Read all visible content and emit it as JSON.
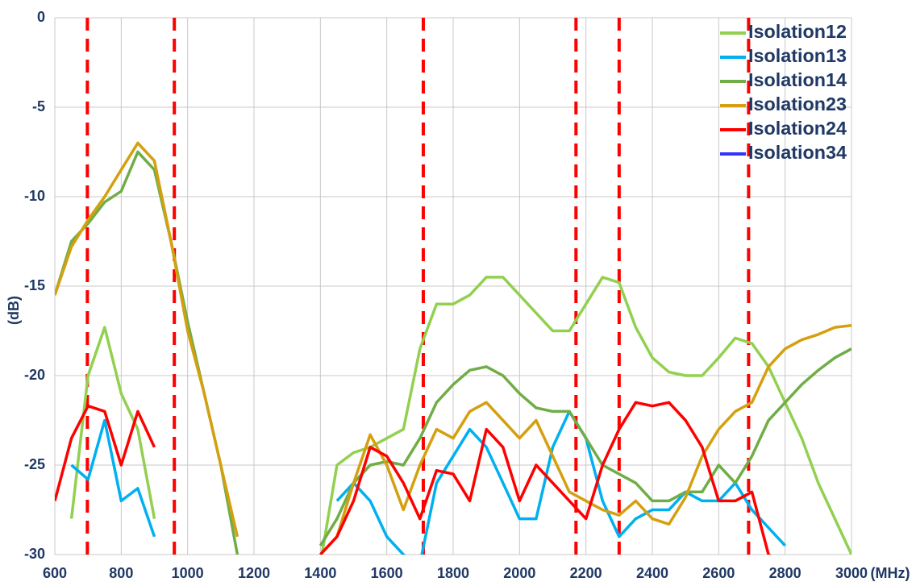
{
  "chart_data": {
    "type": "line",
    "xlabel": "(MHz)",
    "ylabel": "(dB)",
    "xlim": [
      600,
      3000
    ],
    "ylim": [
      -30,
      0
    ],
    "xticks": [
      600,
      800,
      1000,
      1200,
      1400,
      1600,
      1800,
      2000,
      2200,
      2400,
      2600,
      2800,
      3000
    ],
    "yticks": [
      0,
      -5,
      -10,
      -15,
      -20,
      -25,
      -30
    ],
    "grid": true,
    "legend": "upper right",
    "reference_lines": {
      "color": "#ff0000",
      "x": [
        698,
        960,
        1710,
        2170,
        2300,
        2690
      ]
    },
    "x": [
      600,
      650,
      700,
      750,
      800,
      850,
      900,
      950,
      1000,
      1050,
      1100,
      1150,
      1200,
      1250,
      1300,
      1350,
      1400,
      1450,
      1500,
      1550,
      1600,
      1650,
      1700,
      1750,
      1800,
      1850,
      1900,
      1950,
      2000,
      2050,
      2100,
      2150,
      2200,
      2250,
      2300,
      2350,
      2400,
      2450,
      2500,
      2550,
      2600,
      2650,
      2700,
      2750,
      2800,
      2850,
      2900,
      2950,
      3000
    ],
    "series": [
      {
        "name": "Isolation12",
        "color": "#92d050",
        "values": [
          null,
          -28,
          -20,
          -17.3,
          -21,
          -23,
          -28,
          null,
          null,
          null,
          null,
          null,
          null,
          null,
          null,
          null,
          -30.5,
          -25,
          -24.3,
          -24,
          -23.5,
          -23,
          -18.5,
          -16,
          -16,
          -15.5,
          -14.5,
          -14.5,
          -15.5,
          -16.5,
          -17.5,
          -17.5,
          -16,
          -14.5,
          -14.8,
          -17.3,
          -19,
          -19.8,
          -20,
          -20,
          -19,
          -17.9,
          -18.2,
          -19.5,
          -21.5,
          -23.5,
          -26,
          -28,
          -30
        ]
      },
      {
        "name": "Isolation13",
        "color": "#00b0f0",
        "values": [
          null,
          -25,
          -25.8,
          -22.5,
          -27,
          -26.3,
          -29,
          null,
          null,
          null,
          null,
          null,
          null,
          null,
          null,
          null,
          null,
          -27,
          -26,
          -27,
          -29,
          -30,
          -30.5,
          -26,
          -24.5,
          -23,
          -24,
          -26,
          -28,
          -28,
          -24,
          -22,
          -23.5,
          -27,
          -29,
          -28,
          -27.5,
          -27.5,
          -26.5,
          -27,
          -27,
          -26,
          -27.5,
          -28.5,
          -29.5,
          null,
          null,
          null,
          null
        ]
      },
      {
        "name": "Isolation14",
        "color": "#70ad47",
        "values": [
          -15.5,
          -12.5,
          -11.5,
          -10.3,
          -9.7,
          -7.5,
          -8.5,
          -12.5,
          -17,
          -21,
          -25,
          -30,
          null,
          null,
          null,
          null,
          -29.5,
          -28,
          -26,
          -25,
          -24.8,
          -25,
          -23.5,
          -21.5,
          -20.5,
          -19.7,
          -19.5,
          -20,
          -21,
          -21.8,
          -22,
          -22,
          -23.5,
          -25,
          -25.5,
          -26,
          -27,
          -27,
          -26.5,
          -26.5,
          -25,
          -26,
          -24.5,
          -22.5,
          -21.5,
          -20.5,
          -19.7,
          -19,
          -18.5
        ]
      },
      {
        "name": "Isolation23",
        "color": "#d4a010",
        "values": [
          -15.5,
          -12.8,
          -11.3,
          -10,
          -8.5,
          -7,
          -8,
          -12.5,
          -17.5,
          -21,
          -25,
          -29,
          null,
          null,
          null,
          null,
          null,
          -29,
          -26,
          -23.3,
          -25,
          -27.5,
          -25,
          -23,
          -23.5,
          -22,
          -21.5,
          -22.5,
          -23.5,
          -22.5,
          -24.5,
          -26.5,
          -27,
          -27.5,
          -27.8,
          -27,
          -28,
          -28.3,
          -26.8,
          -24.5,
          -23,
          -22,
          -21.5,
          -19.5,
          -18.5,
          -18,
          -17.7,
          -17.3,
          -17.2
        ]
      },
      {
        "name": "Isolation24",
        "color": "#ff0000",
        "values": [
          -27,
          -23.5,
          -21.7,
          -22,
          -25,
          -22,
          -24,
          null,
          null,
          null,
          null,
          null,
          null,
          null,
          null,
          null,
          -30,
          -29,
          -27,
          -24,
          -24.5,
          -26,
          -28,
          -25.3,
          -25.5,
          -27,
          -23,
          -24,
          -27,
          -25,
          -26,
          -27,
          -28,
          -25,
          -23,
          -21.5,
          -21.7,
          -21.5,
          -22.5,
          -24,
          -27,
          -27,
          -26.5,
          -30,
          -30.5,
          null,
          null,
          null,
          null
        ]
      },
      {
        "name": "Isolation34",
        "color": "#3333ff",
        "values": [
          null,
          null,
          null,
          null,
          null,
          null,
          null,
          null,
          null,
          null,
          null,
          null,
          null,
          null,
          null,
          null,
          null,
          null,
          null,
          null,
          null,
          null,
          null,
          null,
          null,
          null,
          null,
          null,
          null,
          null,
          null,
          null,
          null,
          null,
          null,
          null,
          null,
          null,
          null,
          null,
          null,
          null,
          null,
          null,
          null,
          null,
          null,
          null,
          null
        ]
      }
    ]
  }
}
